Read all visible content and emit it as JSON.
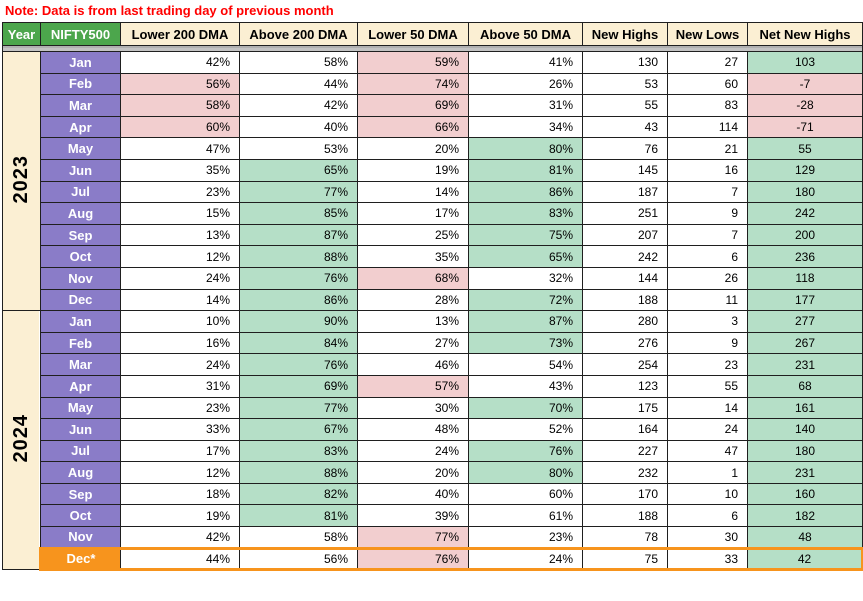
{
  "note": "Note: Data is from last trading day of previous month",
  "colors": {
    "header_green": "#4CA64C",
    "header_cream": "#FBEFD3",
    "month_purple": "#8A7CC8",
    "negative_pink": "#F2CECF",
    "positive_green": "#B5DFC7",
    "highlight_orange": "#F7941D",
    "note_red": "#FF0000",
    "divider_gray": "#C3C3C3",
    "grid_border": "#1F1F1F"
  },
  "chart_data": {
    "type": "table",
    "title": "NIFTY500 market breadth by month",
    "columns": [
      "Year",
      "NIFTY500",
      "Lower 200 DMA",
      "Above 200 DMA",
      "Lower 50 DMA",
      "Above 50 DMA",
      "New Highs",
      "New Lows",
      "Net New Highs"
    ],
    "bg_legend": {
      "w": "white",
      "g": "green",
      "p": "pink"
    },
    "years": [
      {
        "label": "2023",
        "rows": [
          {
            "month": "Jan",
            "highlight": false,
            "values": [
              "42%",
              "58%",
              "59%",
              "41%",
              "130",
              "27",
              "103"
            ],
            "bg": [
              "w",
              "w",
              "p",
              "w",
              "w",
              "w",
              "g"
            ]
          },
          {
            "month": "Feb",
            "highlight": false,
            "values": [
              "56%",
              "44%",
              "74%",
              "26%",
              "53",
              "60",
              "-7"
            ],
            "bg": [
              "p",
              "w",
              "p",
              "w",
              "w",
              "w",
              "p"
            ]
          },
          {
            "month": "Mar",
            "highlight": false,
            "values": [
              "58%",
              "42%",
              "69%",
              "31%",
              "55",
              "83",
              "-28"
            ],
            "bg": [
              "p",
              "w",
              "p",
              "w",
              "w",
              "w",
              "p"
            ]
          },
          {
            "month": "Apr",
            "highlight": false,
            "values": [
              "60%",
              "40%",
              "66%",
              "34%",
              "43",
              "114",
              "-71"
            ],
            "bg": [
              "p",
              "w",
              "p",
              "w",
              "w",
              "w",
              "p"
            ]
          },
          {
            "month": "May",
            "highlight": false,
            "values": [
              "47%",
              "53%",
              "20%",
              "80%",
              "76",
              "21",
              "55"
            ],
            "bg": [
              "w",
              "w",
              "w",
              "g",
              "w",
              "w",
              "g"
            ]
          },
          {
            "month": "Jun",
            "highlight": false,
            "values": [
              "35%",
              "65%",
              "19%",
              "81%",
              "145",
              "16",
              "129"
            ],
            "bg": [
              "w",
              "g",
              "w",
              "g",
              "w",
              "w",
              "g"
            ]
          },
          {
            "month": "Jul",
            "highlight": false,
            "values": [
              "23%",
              "77%",
              "14%",
              "86%",
              "187",
              "7",
              "180"
            ],
            "bg": [
              "w",
              "g",
              "w",
              "g",
              "w",
              "w",
              "g"
            ]
          },
          {
            "month": "Aug",
            "highlight": false,
            "values": [
              "15%",
              "85%",
              "17%",
              "83%",
              "251",
              "9",
              "242"
            ],
            "bg": [
              "w",
              "g",
              "w",
              "g",
              "w",
              "w",
              "g"
            ]
          },
          {
            "month": "Sep",
            "highlight": false,
            "values": [
              "13%",
              "87%",
              "25%",
              "75%",
              "207",
              "7",
              "200"
            ],
            "bg": [
              "w",
              "g",
              "w",
              "g",
              "w",
              "w",
              "g"
            ]
          },
          {
            "month": "Oct",
            "highlight": false,
            "values": [
              "12%",
              "88%",
              "35%",
              "65%",
              "242",
              "6",
              "236"
            ],
            "bg": [
              "w",
              "g",
              "w",
              "g",
              "w",
              "w",
              "g"
            ]
          },
          {
            "month": "Nov",
            "highlight": false,
            "values": [
              "24%",
              "76%",
              "68%",
              "32%",
              "144",
              "26",
              "118"
            ],
            "bg": [
              "w",
              "g",
              "p",
              "w",
              "w",
              "w",
              "g"
            ]
          },
          {
            "month": "Dec",
            "highlight": false,
            "values": [
              "14%",
              "86%",
              "28%",
              "72%",
              "188",
              "11",
              "177"
            ],
            "bg": [
              "w",
              "g",
              "w",
              "g",
              "w",
              "w",
              "g"
            ]
          }
        ]
      },
      {
        "label": "2024",
        "rows": [
          {
            "month": "Jan",
            "highlight": false,
            "values": [
              "10%",
              "90%",
              "13%",
              "87%",
              "280",
              "3",
              "277"
            ],
            "bg": [
              "w",
              "g",
              "w",
              "g",
              "w",
              "w",
              "g"
            ]
          },
          {
            "month": "Feb",
            "highlight": false,
            "values": [
              "16%",
              "84%",
              "27%",
              "73%",
              "276",
              "9",
              "267"
            ],
            "bg": [
              "w",
              "g",
              "w",
              "g",
              "w",
              "w",
              "g"
            ]
          },
          {
            "month": "Mar",
            "highlight": false,
            "values": [
              "24%",
              "76%",
              "46%",
              "54%",
              "254",
              "23",
              "231"
            ],
            "bg": [
              "w",
              "g",
              "w",
              "w",
              "w",
              "w",
              "g"
            ]
          },
          {
            "month": "Apr",
            "highlight": false,
            "values": [
              "31%",
              "69%",
              "57%",
              "43%",
              "123",
              "55",
              "68"
            ],
            "bg": [
              "w",
              "g",
              "p",
              "w",
              "w",
              "w",
              "g"
            ]
          },
          {
            "month": "May",
            "highlight": false,
            "values": [
              "23%",
              "77%",
              "30%",
              "70%",
              "175",
              "14",
              "161"
            ],
            "bg": [
              "w",
              "g",
              "w",
              "g",
              "w",
              "w",
              "g"
            ]
          },
          {
            "month": "Jun",
            "highlight": false,
            "values": [
              "33%",
              "67%",
              "48%",
              "52%",
              "164",
              "24",
              "140"
            ],
            "bg": [
              "w",
              "g",
              "w",
              "w",
              "w",
              "w",
              "g"
            ]
          },
          {
            "month": "Jul",
            "highlight": false,
            "values": [
              "17%",
              "83%",
              "24%",
              "76%",
              "227",
              "47",
              "180"
            ],
            "bg": [
              "w",
              "g",
              "w",
              "g",
              "w",
              "w",
              "g"
            ]
          },
          {
            "month": "Aug",
            "highlight": false,
            "values": [
              "12%",
              "88%",
              "20%",
              "80%",
              "232",
              "1",
              "231"
            ],
            "bg": [
              "w",
              "g",
              "w",
              "g",
              "w",
              "w",
              "g"
            ]
          },
          {
            "month": "Sep",
            "highlight": false,
            "values": [
              "18%",
              "82%",
              "40%",
              "60%",
              "170",
              "10",
              "160"
            ],
            "bg": [
              "w",
              "g",
              "w",
              "w",
              "w",
              "w",
              "g"
            ]
          },
          {
            "month": "Oct",
            "highlight": false,
            "values": [
              "19%",
              "81%",
              "39%",
              "61%",
              "188",
              "6",
              "182"
            ],
            "bg": [
              "w",
              "g",
              "w",
              "w",
              "w",
              "w",
              "g"
            ]
          },
          {
            "month": "Nov",
            "highlight": false,
            "values": [
              "42%",
              "58%",
              "77%",
              "23%",
              "78",
              "30",
              "48"
            ],
            "bg": [
              "w",
              "w",
              "p",
              "w",
              "w",
              "w",
              "g"
            ]
          },
          {
            "month": "Dec*",
            "highlight": true,
            "values": [
              "44%",
              "56%",
              "76%",
              "24%",
              "75",
              "33",
              "42"
            ],
            "bg": [
              "w",
              "w",
              "p",
              "w",
              "w",
              "w",
              "g"
            ]
          }
        ]
      }
    ]
  }
}
